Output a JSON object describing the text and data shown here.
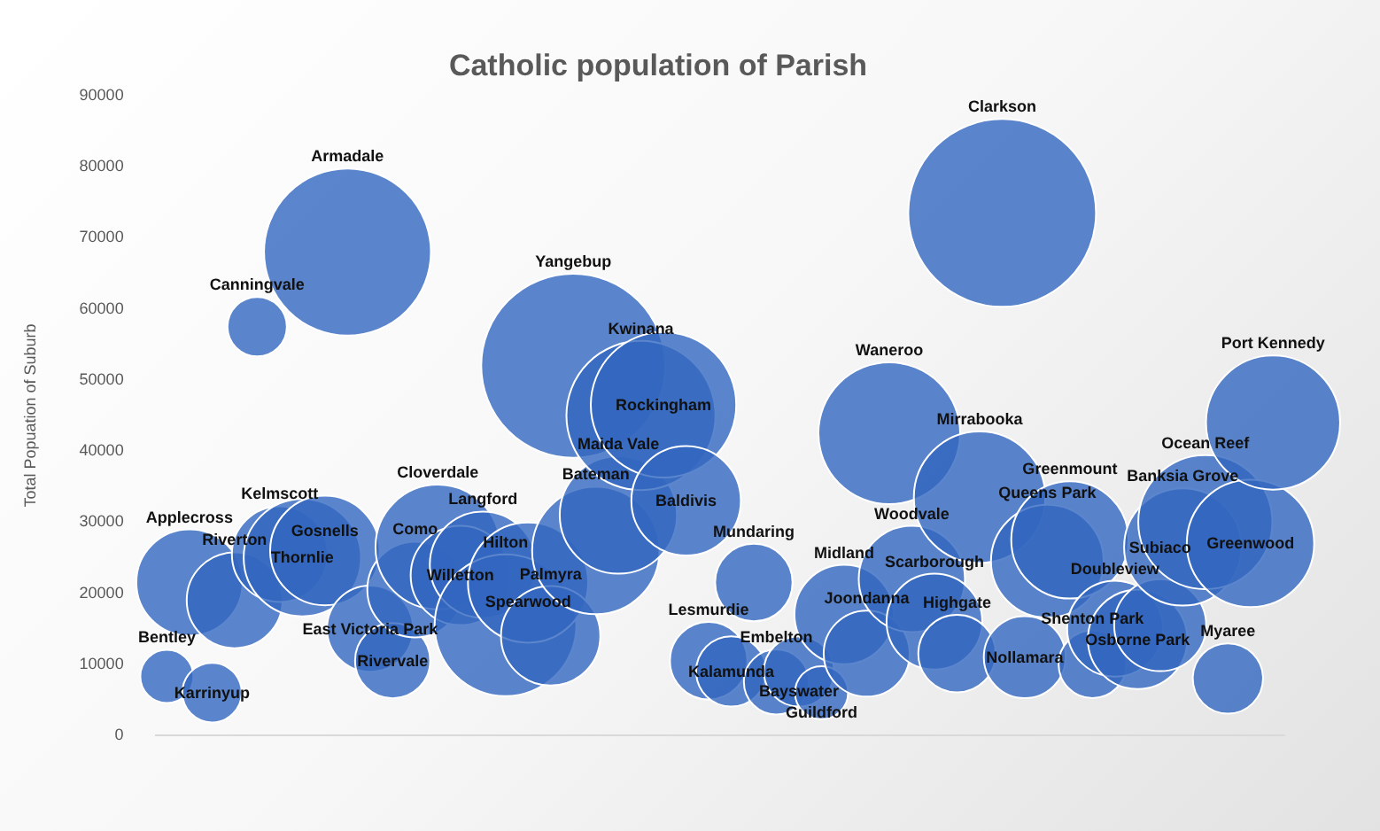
{
  "chart_data": {
    "type": "bubble",
    "title": "Catholic population of Parish",
    "ylabel": "Total Popuation of Suburb",
    "categories": [
      null,
      null,
      null,
      null,
      null,
      null,
      null,
      null,
      null,
      null,
      null,
      null,
      null,
      null,
      null,
      null,
      null,
      null,
      null,
      null,
      null,
      null,
      null,
      null,
      null,
      null,
      null,
      null,
      null,
      null,
      null,
      null,
      null,
      null,
      null,
      null,
      null,
      null,
      null,
      null,
      null,
      null,
      null,
      null,
      null,
      null,
      null,
      null,
      null,
      null
    ],
    "ylim": [
      0,
      90000
    ],
    "yticks": [
      0,
      10000,
      20000,
      30000,
      40000,
      50000,
      60000,
      70000,
      80000,
      90000
    ],
    "tick_labels": "y",
    "grid": false,
    "legend": false,
    "series": [
      {
        "color": "#3267bf",
        "values": [
          8300,
          21500,
          6000,
          19000,
          57500,
          25500,
          25000,
          26000,
          68000,
          15000,
          10500,
          20500,
          26500,
          22500,
          24000,
          15500,
          21500,
          14000,
          52000,
          26000,
          31000,
          45000,
          46500,
          33000,
          10500,
          9000,
          21500,
          7500,
          9000,
          6000,
          17000,
          11500,
          42500,
          22000,
          16000,
          11500,
          33500,
          73500,
          11000,
          24500,
          27500,
          10000,
          15000,
          13500,
          15500,
          26500,
          30000,
          8000,
          27000,
          44000
        ],
        "sizes": [
          0.08,
          0.32,
          0.1,
          0.26,
          0.1,
          0.26,
          0.39,
          0.34,
          0.79,
          0.21,
          0.16,
          0.26,
          0.44,
          0.28,
          0.32,
          0.57,
          0.41,
          0.28,
          0.96,
          0.46,
          0.39,
          0.63,
          0.6,
          0.34,
          0.17,
          0.14,
          0.17,
          0.12,
          0.14,
          0.08,
          0.28,
          0.21,
          0.57,
          0.32,
          0.26,
          0.17,
          0.49,
          1,
          0.19,
          0.36,
          0.39,
          0.13,
          0.26,
          0.28,
          0.24,
          0.39,
          0.51,
          0.14,
          0.46,
          0.51
        ],
        "value_labels": [
          "Bentley",
          "Applecross",
          "Karrinyup",
          "Riverton",
          "Canningvale",
          "Kelmscott",
          "Thornlie",
          "Gosnells",
          "Armadale",
          "East Victoria Park",
          "Rivervale",
          "Como",
          "Cloverdale",
          "Willetton",
          "Langford",
          "Hilton",
          "Spearwood",
          "Palmyra",
          "Yangebup",
          "Bateman",
          "Maida Vale",
          "Kwinana",
          "Rockingham",
          "Baldivis",
          "Lesmurdie",
          "Kalamunda",
          "Mundaring",
          "Embelton",
          "Bayswater",
          "Guildford",
          "Midland",
          "Joondanna",
          "Waneroo",
          "Woodvale",
          "Scarborough",
          "Highgate",
          "Mirrabooka",
          "Clarkson",
          "Nollamara",
          "Queens Park",
          "Greenmount",
          "Shenton Park",
          "Doubleview",
          "Osborne Park",
          "Subiaco",
          "Banksia Grove",
          "Ocean Reef",
          "Myaree",
          "Greenwood",
          "Port Kennedy"
        ]
      }
    ]
  }
}
